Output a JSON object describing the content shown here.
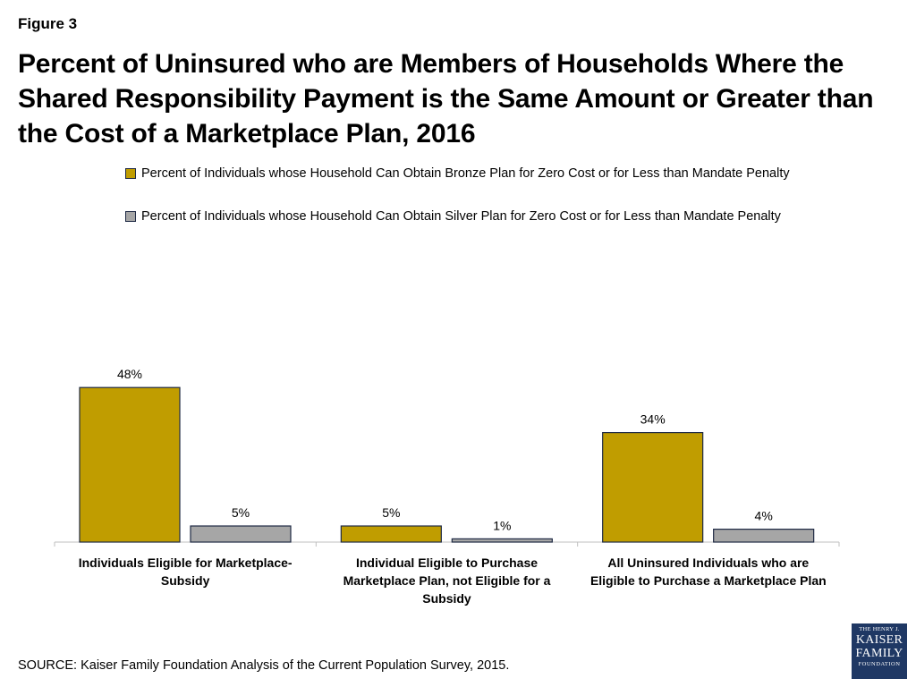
{
  "figure_label": "Figure 3",
  "title": "Percent of Uninsured who are Members of Households Where the Shared Responsibility Payment is the Same Amount or Greater than the Cost of a Marketplace Plan, 2016",
  "source": "SOURCE:  Kaiser Family Foundation Analysis of the Current Population Survey, 2015.",
  "logo": {
    "line1": "THE HENRY J.",
    "line2a": "KAISER",
    "line2b": "FAMILY",
    "line3": "FOUNDATION"
  },
  "colors": {
    "bronze": "#C09D00",
    "silver": "#A6A6A6",
    "outline": "#1F2A44",
    "axis": "#BFBFBF",
    "logo_bg": "#1F3864"
  },
  "chart_data": {
    "type": "bar",
    "categories": [
      [
        "Individuals Eligible for Marketplace-",
        "Subsidy"
      ],
      [
        "Individual Eligible to Purchase",
        "Marketplace Plan, not Eligible for a",
        "Subsidy"
      ],
      [
        "All Uninsured Individuals who are",
        "Eligible to Purchase  a Marketplace Plan"
      ]
    ],
    "series": [
      {
        "name": "Percent of Individuals whose Household Can Obtain Bronze Plan for Zero Cost or for Less than Mandate Penalty",
        "values": [
          48,
          5,
          34
        ],
        "labels": [
          "48%",
          "5%",
          "34%"
        ],
        "color": "#C09D00"
      },
      {
        "name": "Percent of Individuals whose Household Can Obtain Silver Plan for Zero Cost or for Less than Mandate Penalty",
        "values": [
          5,
          1,
          4
        ],
        "labels": [
          "5%",
          "1%",
          "4%"
        ],
        "color": "#A6A6A6"
      }
    ],
    "ylim": [
      0,
      100
    ],
    "grid": false,
    "legend_position": "top"
  }
}
